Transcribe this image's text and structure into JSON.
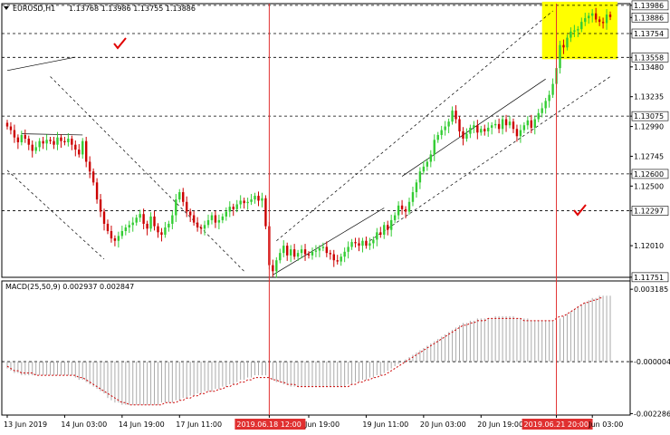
{
  "chart_data": [
    {
      "type": "candlestick",
      "symbol_label": "EURUSD,H1",
      "ohlc_label": "1.13768 1.13986 1.13755 1.13886",
      "ylim": [
        1.1175,
        1.14
      ],
      "y_ticks": [
        {
          "value": 1.13986,
          "label": "1.13986",
          "highlight": true
        },
        {
          "value": 1.13886,
          "label": "1.13886",
          "highlight": true
        },
        {
          "value": 1.13754,
          "label": "1.13754",
          "highlight": true
        },
        {
          "value": 1.13558,
          "label": "1.13558",
          "highlight": true
        },
        {
          "value": 1.1348,
          "label": "1.13480",
          "highlight": false
        },
        {
          "value": 1.13235,
          "label": "1.13235",
          "highlight": false
        },
        {
          "value": 1.13075,
          "label": "1.13075",
          "highlight": true
        },
        {
          "value": 1.1299,
          "label": "1.12990",
          "highlight": false
        },
        {
          "value": 1.12745,
          "label": "1.12745",
          "highlight": false
        },
        {
          "value": 1.126,
          "label": "1.12600",
          "highlight": true
        },
        {
          "value": 1.125,
          "label": "1.12500",
          "highlight": false
        },
        {
          "value": 1.12297,
          "label": "1.12297",
          "highlight": true
        },
        {
          "value": 1.1201,
          "label": "1.12010",
          "highlight": false
        },
        {
          "value": 1.11751,
          "label": "1.11751",
          "highlight": true
        }
      ],
      "levels": [
        1.13986,
        1.13754,
        1.13558,
        1.13075,
        1.126,
        1.12297
      ],
      "x_labels": [
        {
          "label": "13 Jun 2019",
          "index": 0,
          "highlight": false
        },
        {
          "label": "14 Jun 03:00",
          "index": 16,
          "highlight": false
        },
        {
          "label": "14 Jun 19:00",
          "index": 32,
          "highlight": false
        },
        {
          "label": "17 Jun 11:00",
          "index": 48,
          "highlight": false
        },
        {
          "label": "2019.06.18 12:00",
          "index": 73,
          "highlight": true
        },
        {
          "label": "Jun 19:00",
          "index": 84,
          "highlight": false
        },
        {
          "label": "19 Jun 11:00",
          "index": 100,
          "highlight": false
        },
        {
          "label": "20 Jun 03:00",
          "index": 116,
          "highlight": false
        },
        {
          "label": "20 Jun 19:00",
          "index": 132,
          "highlight": false
        },
        {
          "label": "2019.06.21 20:00",
          "index": 153,
          "highlight": true
        },
        {
          "label": "Jun 03:00",
          "index": 163,
          "highlight": false
        }
      ],
      "vlines": [
        73,
        153
      ],
      "selection_zone": {
        "from": 149,
        "to": 170,
        "y_top": 1.13986,
        "y_bottom": 1.13558,
        "color": "#ffff00"
      },
      "colors": {
        "up": "#33cc33",
        "down": "#cc0000",
        "level": "#000000",
        "vline": "#e03030",
        "macd": "#cc0000",
        "histogram": "#aaaaaa",
        "check": "#e00000",
        "selection": "#ffff00"
      },
      "closes": [
        1.1299,
        1.1296,
        1.129,
        1.1286,
        1.1292,
        1.1289,
        1.1284,
        1.1279,
        1.1282,
        1.1287,
        1.1285,
        1.1288,
        1.1287,
        1.1284,
        1.129,
        1.1287,
        1.1286,
        1.1289,
        1.1284,
        1.128,
        1.1276,
        1.1287,
        1.127,
        1.1262,
        1.1253,
        1.1239,
        1.1229,
        1.1219,
        1.1213,
        1.1207,
        1.1205,
        1.1209,
        1.1213,
        1.1216,
        1.1218,
        1.122,
        1.1224,
        1.1227,
        1.1219,
        1.1215,
        1.1225,
        1.1217,
        1.1212,
        1.121,
        1.1216,
        1.1219,
        1.1226,
        1.1239,
        1.1245,
        1.1237,
        1.1229,
        1.1226,
        1.122,
        1.1216,
        1.1215,
        1.1218,
        1.1222,
        1.1226,
        1.122,
        1.1222,
        1.1225,
        1.1229,
        1.1233,
        1.1231,
        1.1235,
        1.1238,
        1.1236,
        1.1237,
        1.1239,
        1.1242,
        1.1238,
        1.124,
        1.1217,
        1.1185,
        1.118,
        1.1189,
        1.1195,
        1.1201,
        1.1193,
        1.1198,
        1.1192,
        1.1195,
        1.1198,
        1.1194,
        1.1193,
        1.1196,
        1.1197,
        1.1199,
        1.12,
        1.1195,
        1.1194,
        1.1189,
        1.1188,
        1.1192,
        1.1196,
        1.12,
        1.1204,
        1.1203,
        1.1201,
        1.1205,
        1.1201,
        1.1203,
        1.1206,
        1.1212,
        1.121,
        1.1218,
        1.1214,
        1.1222,
        1.1226,
        1.1234,
        1.1231,
        1.1229,
        1.1237,
        1.1245,
        1.1253,
        1.1262,
        1.1266,
        1.127,
        1.1276,
        1.1288,
        1.1292,
        1.1296,
        1.1299,
        1.1303,
        1.1312,
        1.1305,
        1.1295,
        1.1289,
        1.1293,
        1.1298,
        1.13,
        1.1294,
        1.1297,
        1.1295,
        1.1298,
        1.13,
        1.1301,
        1.1297,
        1.1305,
        1.13,
        1.1303,
        1.1297,
        1.1291,
        1.1296,
        1.13,
        1.1304,
        1.1298,
        1.1305,
        1.131,
        1.1314,
        1.132,
        1.1325,
        1.1334,
        1.1347,
        1.1366,
        1.1364,
        1.1372,
        1.1377,
        1.1378,
        1.1379,
        1.1385,
        1.1388,
        1.139,
        1.1392,
        1.1387,
        1.1385,
        1.1384,
        1.1391,
        1.1389
      ]
    },
    {
      "type": "macd-histogram",
      "label": "MACD(25,50,9) 0.002937 0.002847",
      "ylim": [
        -0.00235,
        0.00355
      ],
      "y_ticks": [
        {
          "value": 0.003185,
          "label": "0.003185"
        },
        {
          "value": 0.0,
          "label": "-0.000004"
        },
        {
          "value": -0.002286,
          "label": "-0.002286"
        }
      ],
      "histogram": [
        -0.0003,
        -0.0004,
        -0.0005,
        -0.0005,
        -0.0006,
        -0.0006,
        -0.0006,
        -0.0006,
        -0.0006,
        -0.0006,
        -0.0006,
        -0.0006,
        -0.0006,
        -0.0006,
        -0.0006,
        -0.0006,
        -0.0006,
        -0.0006,
        -0.0006,
        -0.0007,
        -0.0008,
        -0.0008,
        -0.0009,
        -0.001,
        -0.0011,
        -0.0012,
        -0.0013,
        -0.0014,
        -0.0016,
        -0.0017,
        -0.0018,
        -0.0018,
        -0.0019,
        -0.0019,
        -0.0019,
        -0.0019,
        -0.0019,
        -0.0019,
        -0.0019,
        -0.0019,
        -0.0019,
        -0.0019,
        -0.0019,
        -0.0018,
        -0.0018,
        -0.0018,
        -0.0018,
        -0.0017,
        -0.0017,
        -0.0016,
        -0.0016,
        -0.0015,
        -0.0015,
        -0.0014,
        -0.0014,
        -0.0013,
        -0.0013,
        -0.0013,
        -0.0012,
        -0.0012,
        -0.0011,
        -0.0011,
        -0.001,
        -0.001,
        -0.0009,
        -0.0008,
        -0.0008,
        -0.0007,
        -0.0007,
        -0.0006,
        -0.0006,
        -0.0006,
        -0.0006,
        -0.0007,
        -0.0008,
        -0.0009,
        -0.0009,
        -0.001,
        -0.001,
        -0.0011,
        -0.0011,
        -0.0011,
        -0.0011,
        -0.0011,
        -0.0011,
        -0.0011,
        -0.0011,
        -0.0011,
        -0.0011,
        -0.0011,
        -0.0011,
        -0.0011,
        -0.0011,
        -0.0011,
        -0.0011,
        -0.001,
        -0.001,
        -0.0009,
        -0.0009,
        -0.0008,
        -0.0008,
        -0.0007,
        -0.0007,
        -0.0006,
        -0.0006,
        -0.0005,
        -0.0004,
        -0.0003,
        -0.0002,
        -0.0001,
        0.0,
        0.0001,
        0.0002,
        0.0003,
        0.0004,
        0.0005,
        0.0006,
        0.0007,
        0.0008,
        0.0009,
        0.001,
        0.0011,
        0.0012,
        0.0013,
        0.0014,
        0.0015,
        0.0016,
        0.0017,
        0.0017,
        0.0018,
        0.0018,
        0.0019,
        0.0019,
        0.0019,
        0.0019,
        0.0019,
        0.002,
        0.002,
        0.002,
        0.002,
        0.002,
        0.002,
        0.0019,
        0.0019,
        0.0019,
        0.0019,
        0.0018,
        0.0018,
        0.0018,
        0.0018,
        0.0018,
        0.0018,
        0.0018,
        0.0018,
        0.0019,
        0.002,
        0.0021,
        0.0022,
        0.0023,
        0.0024,
        0.0025,
        0.0026,
        0.0027,
        0.0028,
        0.0028,
        0.0029,
        0.0029,
        0.0029,
        0.0029
      ],
      "signal": [
        -0.0002,
        -0.0003,
        -0.0004,
        -0.0004,
        -0.0005,
        -0.0005,
        -0.0005,
        -0.0005,
        -0.0006,
        -0.0006,
        -0.0006,
        -0.0006,
        -0.0006,
        -0.0006,
        -0.0006,
        -0.0006,
        -0.0006,
        -0.0006,
        -0.0006,
        -0.0006,
        -0.0007,
        -0.0007,
        -0.0008,
        -0.0009,
        -0.001,
        -0.0011,
        -0.0012,
        -0.0013,
        -0.0014,
        -0.0015,
        -0.0016,
        -0.0017,
        -0.0018,
        -0.0018,
        -0.0019,
        -0.0019,
        -0.0019,
        -0.0019,
        -0.0019,
        -0.0019,
        -0.0019,
        -0.0019,
        -0.0019,
        -0.0019,
        -0.0018,
        -0.0018,
        -0.0018,
        -0.0018,
        -0.0017,
        -0.0017,
        -0.0016,
        -0.0016,
        -0.0015,
        -0.0015,
        -0.0014,
        -0.0014,
        -0.0013,
        -0.0013,
        -0.0013,
        -0.0012,
        -0.0012,
        -0.0011,
        -0.0011,
        -0.001,
        -0.001,
        -0.0009,
        -0.0009,
        -0.0008,
        -0.0008,
        -0.0007,
        -0.0007,
        -0.0007,
        -0.0007,
        -0.0007,
        -0.0008,
        -0.0008,
        -0.0009,
        -0.0009,
        -0.001,
        -0.001,
        -0.001,
        -0.0011,
        -0.0011,
        -0.0011,
        -0.0011,
        -0.0011,
        -0.0011,
        -0.0011,
        -0.0011,
        -0.0011,
        -0.0011,
        -0.0011,
        -0.0011,
        -0.0011,
        -0.0011,
        -0.0011,
        -0.001,
        -0.001,
        -0.0009,
        -0.0009,
        -0.0008,
        -0.0008,
        -0.0007,
        -0.0007,
        -0.0006,
        -0.0006,
        -0.0005,
        -0.0004,
        -0.0003,
        -0.0002,
        -0.0001,
        0.0,
        0.0001,
        0.0002,
        0.0003,
        0.0004,
        0.0005,
        0.0006,
        0.0007,
        0.0008,
        0.0009,
        0.001,
        0.0011,
        0.0012,
        0.0013,
        0.0014,
        0.0015,
        0.0016,
        0.0016,
        0.0017,
        0.0017,
        0.0018,
        0.0018,
        0.0018,
        0.0019,
        0.0019,
        0.0019,
        0.0019,
        0.0019,
        0.0019,
        0.0019,
        0.0019,
        0.0019,
        0.0019,
        0.0018,
        0.0018,
        0.0018,
        0.0018,
        0.0018,
        0.0018,
        0.0018,
        0.0018,
        0.0018,
        0.0019,
        0.002,
        0.002,
        0.0021,
        0.0022,
        0.0023,
        0.0024,
        0.0025,
        0.0026,
        0.0026,
        0.0027,
        0.0027,
        0.0028,
        0.0028
      ]
    }
  ]
}
